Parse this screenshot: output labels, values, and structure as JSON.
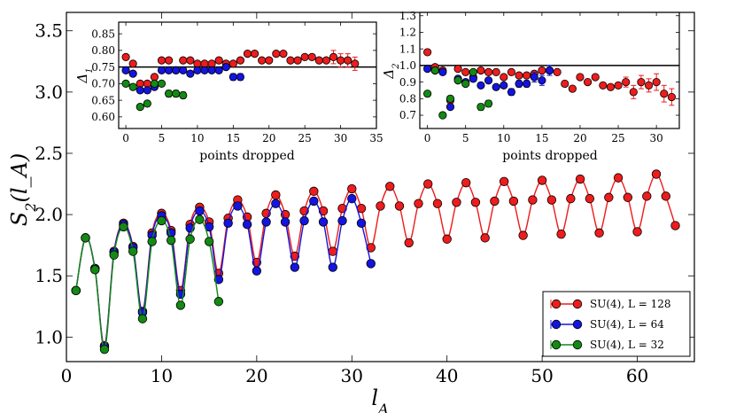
{
  "chart_data": [
    {
      "id": "main",
      "type": "line",
      "xlabel": "l_A",
      "ylabel": "S_2(l_A)",
      "xlim": [
        0,
        66
      ],
      "ylim": [
        0.8,
        3.65
      ],
      "xticks": [
        0,
        10,
        20,
        30,
        40,
        50,
        60
      ],
      "yticks": [
        1.0,
        1.5,
        2.0,
        2.5,
        3.0,
        3.5
      ],
      "legend_position": "bottom-right",
      "series": [
        {
          "name": "SU(4), L = 128",
          "color": "#ee1c1c",
          "x": [
            1,
            2,
            3,
            4,
            5,
            6,
            7,
            8,
            9,
            10,
            11,
            12,
            13,
            14,
            15,
            16,
            17,
            18,
            19,
            20,
            21,
            22,
            23,
            24,
            25,
            26,
            27,
            28,
            29,
            30,
            31,
            32,
            33,
            34,
            35,
            36,
            37,
            38,
            39,
            40,
            41,
            42,
            43,
            44,
            45,
            46,
            47,
            48,
            49,
            50,
            51,
            52,
            53,
            54,
            55,
            56,
            57,
            58,
            59,
            60,
            61,
            62,
            63,
            64
          ],
          "y": [
            1.38,
            1.81,
            1.56,
            0.93,
            1.7,
            1.93,
            1.74,
            1.21,
            1.85,
            2.01,
            1.87,
            1.38,
            1.92,
            2.06,
            1.94,
            1.52,
            1.97,
            2.12,
            1.98,
            1.61,
            2.01,
            2.16,
            2.0,
            1.66,
            2.03,
            2.19,
            2.03,
            1.7,
            2.05,
            2.21,
            2.05,
            1.73,
            2.07,
            2.23,
            2.07,
            1.77,
            2.09,
            2.25,
            2.09,
            1.8,
            2.1,
            2.26,
            2.1,
            1.81,
            2.11,
            2.27,
            2.11,
            1.83,
            2.12,
            2.28,
            2.12,
            1.84,
            2.13,
            2.29,
            2.13,
            1.85,
            2.14,
            2.3,
            2.14,
            1.86,
            2.15,
            2.33,
            2.15,
            1.91
          ]
        },
        {
          "name": "SU(4), L = 64",
          "color": "#1414e0",
          "x": [
            1,
            2,
            3,
            4,
            5,
            6,
            7,
            8,
            9,
            10,
            11,
            12,
            13,
            14,
            15,
            16,
            17,
            18,
            19,
            20,
            21,
            22,
            23,
            24,
            25,
            26,
            27,
            28,
            29,
            30,
            31,
            32
          ],
          "y": [
            1.38,
            1.81,
            1.56,
            0.92,
            1.69,
            1.92,
            1.73,
            1.2,
            1.83,
            1.99,
            1.85,
            1.35,
            1.89,
            2.03,
            1.9,
            1.47,
            1.93,
            2.07,
            1.92,
            1.54,
            1.94,
            2.09,
            1.94,
            1.57,
            1.95,
            2.11,
            1.94,
            1.57,
            1.95,
            2.13,
            1.93,
            1.6
          ]
        },
        {
          "name": "SU(4), L = 32",
          "color": "#138a13",
          "x": [
            1,
            2,
            3,
            4,
            5,
            6,
            7,
            8,
            9,
            10,
            11,
            12,
            13,
            14,
            15,
            16
          ],
          "y": [
            1.38,
            1.81,
            1.55,
            0.9,
            1.67,
            1.9,
            1.7,
            1.15,
            1.78,
            1.95,
            1.79,
            1.26,
            1.8,
            1.96,
            1.78,
            1.29
          ]
        }
      ]
    },
    {
      "id": "inset1",
      "type": "scatter",
      "xlabel": "points dropped",
      "ylabel": "Δ_1",
      "xlim": [
        -1,
        35
      ],
      "ylim": [
        0.565,
        0.885
      ],
      "xticks": [
        0,
        5,
        10,
        15,
        20,
        25,
        30,
        35
      ],
      "yticks": [
        0.6,
        0.65,
        0.7,
        0.75,
        0.8,
        0.85
      ],
      "hline": 0.75,
      "series": [
        {
          "name": "SU(4), L = 128",
          "color": "#ee1c1c",
          "x": [
            0,
            1,
            2,
            3,
            4,
            5,
            6,
            7,
            8,
            9,
            10,
            11,
            12,
            13,
            14,
            15,
            16,
            17,
            18,
            19,
            20,
            21,
            22,
            23,
            24,
            25,
            26,
            27,
            28,
            29,
            30,
            31,
            32
          ],
          "y": [
            0.78,
            0.76,
            0.7,
            0.7,
            0.72,
            0.77,
            0.77,
            0.74,
            0.77,
            0.77,
            0.76,
            0.76,
            0.76,
            0.77,
            0.76,
            0.76,
            0.77,
            0.79,
            0.79,
            0.77,
            0.77,
            0.79,
            0.79,
            0.77,
            0.77,
            0.78,
            0.78,
            0.77,
            0.77,
            0.78,
            0.77,
            0.77,
            0.76
          ],
          "err": [
            0,
            0,
            0,
            0,
            0,
            0,
            0,
            0,
            0,
            0,
            0,
            0,
            0,
            0,
            0,
            0,
            0,
            0,
            0,
            0,
            0,
            0,
            0,
            0,
            0,
            0,
            0,
            0,
            0,
            0.02,
            0.02,
            0.02,
            0.02
          ]
        },
        {
          "name": "SU(4), L = 64",
          "color": "#1414e0",
          "x": [
            0,
            1,
            2,
            3,
            4,
            5,
            6,
            7,
            8,
            9,
            10,
            11,
            12,
            13,
            14,
            15,
            16
          ],
          "y": [
            0.74,
            0.73,
            0.68,
            0.68,
            0.69,
            0.74,
            0.74,
            0.74,
            0.74,
            0.73,
            0.74,
            0.74,
            0.74,
            0.74,
            0.75,
            0.72,
            0.72
          ],
          "err": [
            0,
            0,
            0,
            0,
            0,
            0,
            0,
            0,
            0,
            0,
            0,
            0,
            0,
            0,
            0,
            0.01,
            0.01
          ]
        },
        {
          "name": "SU(4), L = 32",
          "color": "#138a13",
          "x": [
            0,
            1,
            2,
            3,
            4,
            5,
            6,
            7,
            8
          ],
          "y": [
            0.7,
            0.69,
            0.63,
            0.64,
            0.7,
            0.7,
            0.67,
            0.67,
            0.665
          ],
          "err": [
            0,
            0,
            0,
            0,
            0,
            0,
            0.01,
            0.01,
            0.01
          ]
        }
      ]
    },
    {
      "id": "inset2",
      "type": "scatter",
      "xlabel": "points dropped",
      "ylabel": "Δ_2",
      "xlim": [
        -1,
        33
      ],
      "ylim": [
        0.62,
        1.32
      ],
      "xticks": [
        0,
        5,
        10,
        15,
        20,
        25,
        30
      ],
      "yticks": [
        0.7,
        0.8,
        0.9,
        1.0,
        1.1,
        1.2,
        1.3
      ],
      "hline": 1.0,
      "series": [
        {
          "name": "SU(4), L = 128",
          "color": "#ee1c1c",
          "x": [
            0,
            1,
            2,
            3,
            4,
            5,
            6,
            7,
            8,
            9,
            10,
            11,
            12,
            13,
            14,
            15,
            16,
            17,
            18,
            19,
            20,
            21,
            22,
            23,
            24,
            25,
            26,
            27,
            28,
            29,
            30,
            31,
            32
          ],
          "y": [
            1.08,
            0.99,
            0.97,
            0.79,
            0.98,
            0.96,
            0.93,
            0.97,
            0.96,
            0.96,
            0.93,
            0.96,
            0.94,
            0.94,
            0.95,
            0.97,
            0.97,
            0.96,
            0.89,
            0.86,
            0.93,
            0.9,
            0.93,
            0.88,
            0.87,
            0.88,
            0.9,
            0.84,
            0.9,
            0.88,
            0.9,
            0.83,
            0.81
          ],
          "err": [
            0,
            0,
            0,
            0,
            0,
            0,
            0,
            0,
            0,
            0,
            0,
            0,
            0,
            0,
            0,
            0,
            0,
            0,
            0,
            0,
            0,
            0,
            0,
            0,
            0,
            0,
            0.03,
            0.04,
            0.04,
            0.04,
            0.05,
            0.05,
            0.05
          ]
        },
        {
          "name": "SU(4), L = 64",
          "color": "#1414e0",
          "x": [
            0,
            1,
            2,
            3,
            4,
            5,
            6,
            7,
            8,
            9,
            10,
            11,
            12,
            13,
            14,
            15,
            16
          ],
          "y": [
            0.98,
            0.97,
            0.96,
            0.75,
            0.92,
            0.9,
            0.92,
            0.88,
            0.91,
            0.87,
            0.88,
            0.84,
            0.89,
            0.89,
            0.93,
            0.91,
            0.97
          ],
          "err": [
            0,
            0,
            0,
            0,
            0,
            0,
            0,
            0,
            0,
            0,
            0,
            0.02,
            0.02,
            0.02,
            0.03,
            0.03,
            0.03
          ]
        },
        {
          "name": "SU(4), L = 32",
          "color": "#138a13",
          "x": [
            0,
            1,
            2,
            3,
            4,
            5,
            6,
            7,
            8
          ],
          "y": [
            0.83,
            0.97,
            0.7,
            0.8,
            0.91,
            0.89,
            0.96,
            0.75,
            0.77
          ],
          "err": [
            0,
            0,
            0,
            0,
            0,
            0,
            0,
            0.02,
            0.02
          ]
        }
      ]
    }
  ]
}
